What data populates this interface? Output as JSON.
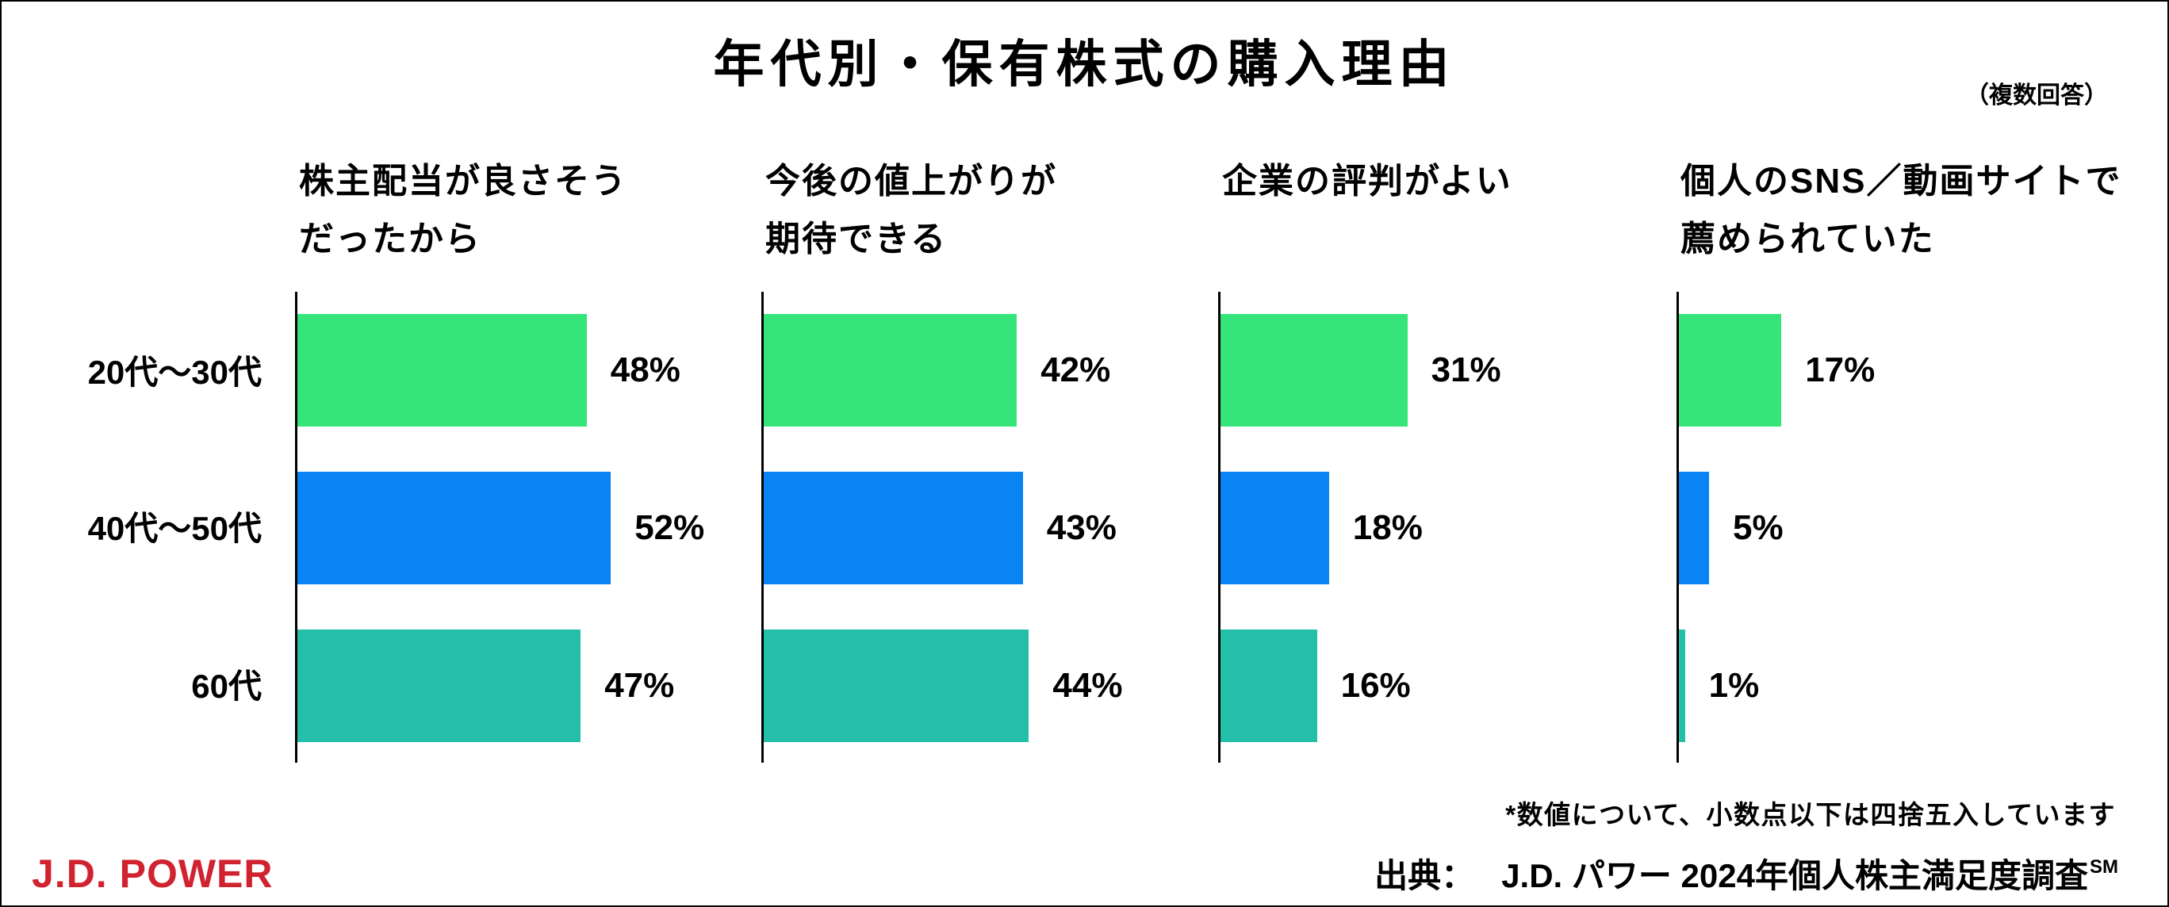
{
  "chart_data": {
    "type": "bar",
    "orientation": "horizontal",
    "title": "年代別・保有株式の購入理由",
    "note": "（複数回答）",
    "unit": "%",
    "categories": [
      "20代～30代",
      "40代～50代",
      "60代"
    ],
    "colors": [
      "#36E57A",
      "#0A84F5",
      "#23BFA8"
    ],
    "panels": [
      {
        "label_lines": [
          "株主配当が良さそう",
          "だったから"
        ],
        "values": [
          48,
          52,
          47
        ]
      },
      {
        "label_lines": [
          "今後の値上がりが",
          "期待できる"
        ],
        "values": [
          42,
          43,
          44
        ]
      },
      {
        "label_lines": [
          "企業の評判がよい"
        ],
        "values": [
          31,
          18,
          16
        ]
      },
      {
        "label_lines": [
          "個人のSNS／動画サイトで",
          "薦められていた"
        ],
        "values": [
          17,
          5,
          1
        ]
      }
    ]
  },
  "footnote": "*数値について、小数点以下は四捨五入しています",
  "source": {
    "label": "出典：",
    "text": "J.D. パワー 2024年個人株主満足度調査",
    "mark": "SM"
  },
  "logo": {
    "text": "J.D. POWER",
    "color": "#D12230"
  }
}
